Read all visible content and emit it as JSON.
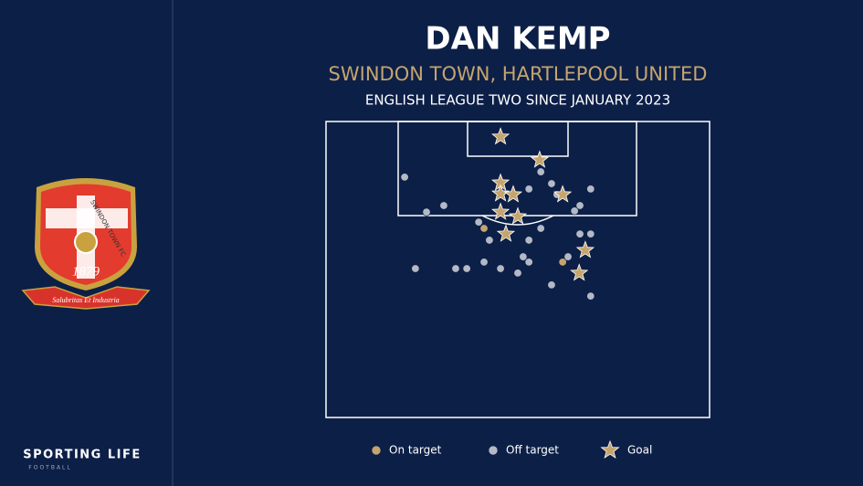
{
  "chart_data": {
    "type": "scatter",
    "title": "DAN KEMP",
    "subtitle": "SWINDON TOWN, HARTLEPOOL UNITED",
    "caption": "ENGLISH LEAGUE TWO SINCE JANUARY 2023",
    "xlim": [
      0,
      100
    ],
    "ylim": [
      0,
      100
    ],
    "series": [
      {
        "name": "On target",
        "color": "#c5a46e",
        "marker": "circle",
        "x": [
          41.2,
          61.7
        ],
        "values": [
          36.1,
          47.5
        ]
      },
      {
        "name": "Off target",
        "color": "#b4b9c6",
        "marker": "circle",
        "x": [
          20.5,
          26.2,
          30.7,
          56.0,
          58.8,
          52.9,
          60.2,
          66.2,
          64.8,
          69.0,
          39.8,
          42.6,
          52.9,
          56.0,
          66.2,
          69.0,
          51.4,
          52.9,
          63.1,
          23.3,
          33.8,
          36.7,
          41.2,
          45.5,
          50.0,
          58.8,
          69.0
        ],
        "values": [
          18.8,
          30.6,
          28.4,
          17.0,
          21.0,
          22.8,
          24.7,
          28.4,
          30.2,
          22.8,
          34.0,
          40.1,
          40.1,
          36.1,
          38.0,
          38.0,
          45.7,
          47.5,
          45.7,
          49.7,
          49.7,
          49.7,
          47.5,
          49.7,
          51.2,
          55.2,
          59.0
        ]
      },
      {
        "name": "Goal",
        "color": "#c5a46e",
        "marker": "star",
        "x": [
          45.5,
          55.7,
          45.5,
          45.5,
          48.8,
          61.7,
          45.5,
          50.0,
          46.9,
          67.6,
          66.0
        ],
        "values": [
          5.2,
          13.0,
          20.7,
          24.4,
          24.7,
          24.7,
          30.6,
          32.1,
          38.0,
          43.5,
          51.2
        ]
      }
    ]
  },
  "badge": {
    "name": "SWINDON TOWN FC",
    "year": "1879",
    "motto": "Salubritas Et Industria"
  },
  "brand": {
    "name": "SPORTING LIFE",
    "section": "FOOTBALL"
  }
}
